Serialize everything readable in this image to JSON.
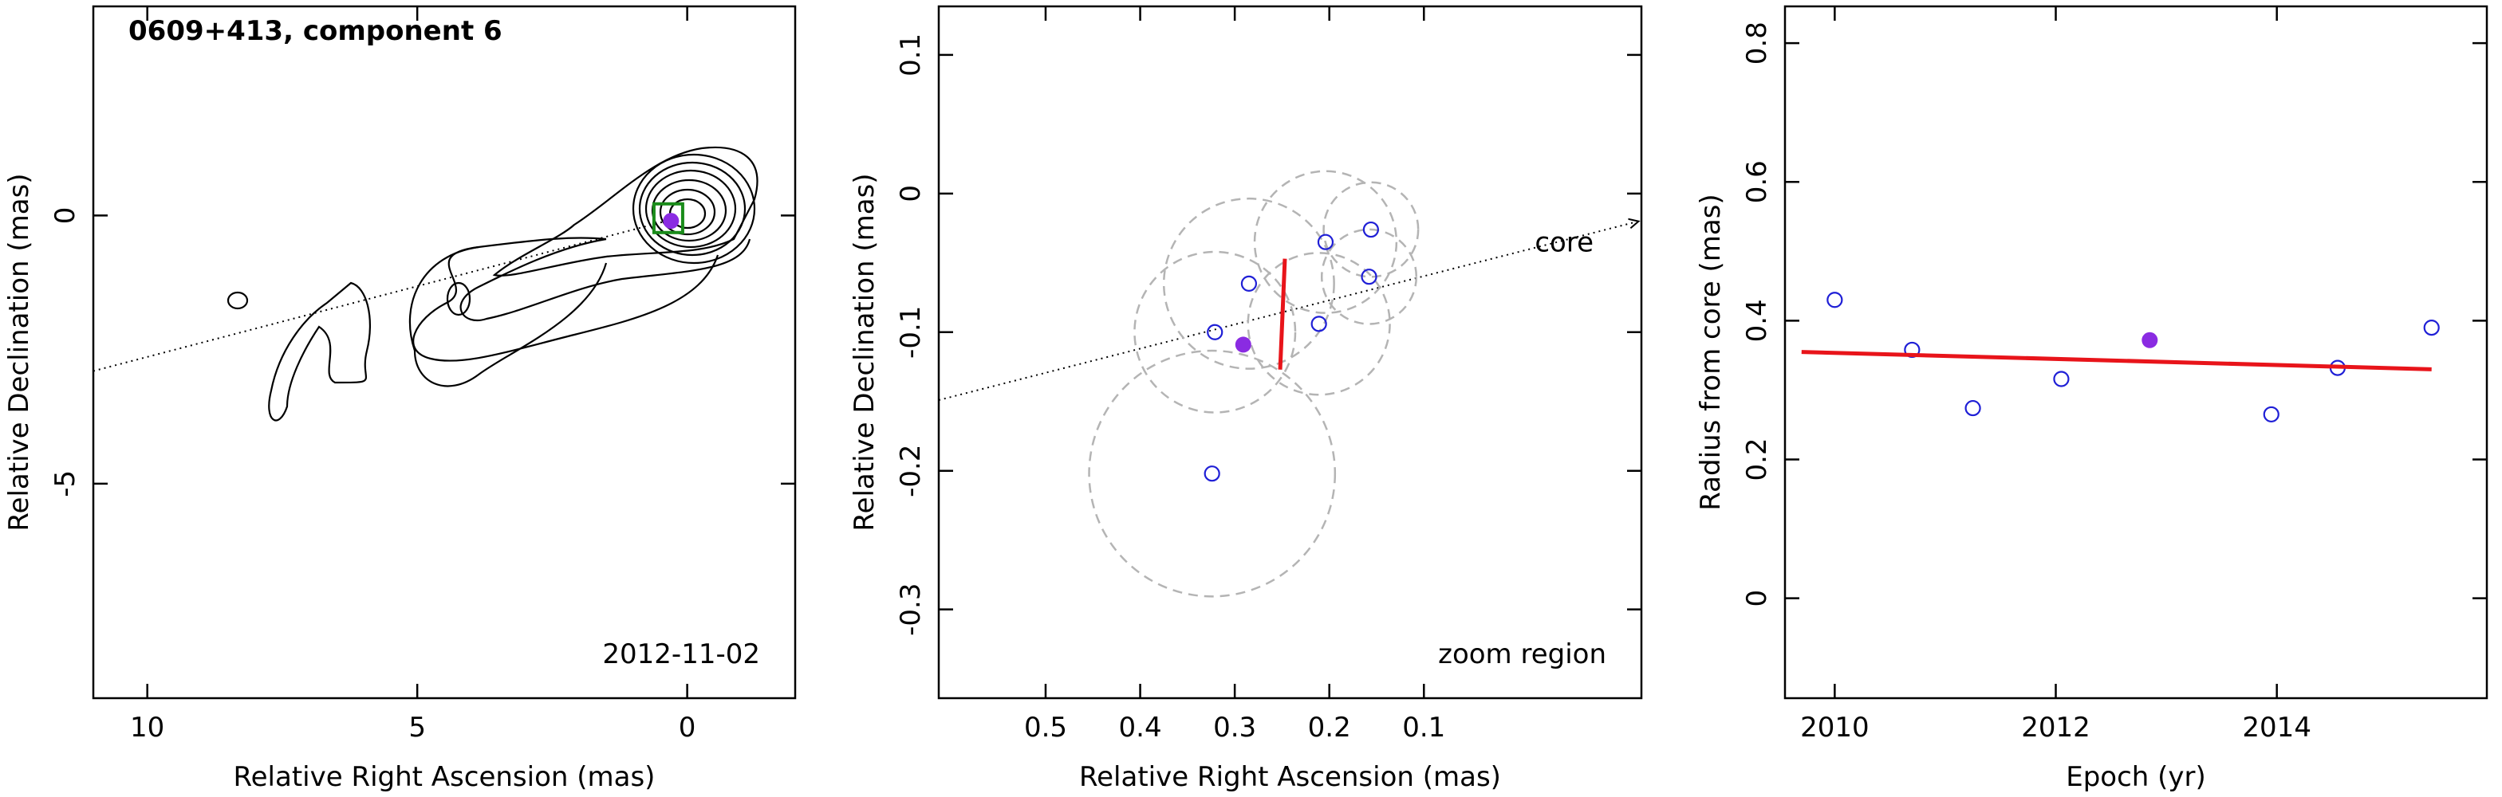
{
  "chart_data": [
    {
      "type": "map",
      "title": "0609+413, component 6",
      "annotation": "2012-11-02",
      "xlabel": "Relative Right Ascension (mas)",
      "ylabel": "Relative Declination (mas)",
      "xlim": [
        11,
        -2
      ],
      "ylim": [
        -9,
        3.9
      ],
      "xticks": [
        10,
        5,
        0
      ],
      "yticks": [
        0,
        -5
      ],
      "component": {
        "x": 0.3,
        "y": -0.1,
        "color": "#8a2be2"
      },
      "box": {
        "x": 0.35,
        "y": -0.05,
        "color": "#1a8c1a"
      },
      "direction_line": {
        "x": [
          11,
          0
        ],
        "y": [
          -2.9,
          0
        ]
      }
    },
    {
      "type": "scatter",
      "annotation": "zoom region",
      "line_label": "core",
      "xlabel": "Relative Right Ascension (mas)",
      "ylabel": "Relative Declination (mas)",
      "xlim": [
        0.613,
        -0.13
      ],
      "ylim": [
        -0.364,
        0.135
      ],
      "xticks": [
        0.5,
        0.4,
        0.3,
        0.2,
        0.1
      ],
      "yticks": [
        0.1,
        0,
        -0.1,
        -0.2,
        -0.3
      ],
      "points": {
        "color": "#1f1fd6",
        "x": [
          0.156,
          0.204,
          0.285,
          0.158,
          0.321,
          0.211,
          0.324
        ],
        "y": [
          -0.026,
          -0.035,
          -0.065,
          -0.06,
          -0.1,
          -0.094,
          -0.202
        ],
        "radii": [
          0.05,
          0.075,
          0.09,
          0.05,
          0.085,
          0.075,
          0.13
        ]
      },
      "highlight": {
        "x": 0.291,
        "y": -0.109,
        "color": "#8a2be2"
      },
      "fit_line": {
        "x": [
          0.247,
          0.252
        ],
        "y": [
          -0.047,
          -0.127
        ],
        "color": "#e8141a"
      },
      "direction_line": {
        "x": [
          0.613,
          -0.127
        ],
        "y": [
          -0.149,
          -0.02
        ]
      }
    },
    {
      "type": "scatter",
      "xlabel": "Epoch (yr)",
      "ylabel": "Radius from core (mas)",
      "xlim": [
        2009.55,
        2015.9
      ],
      "ylim": [
        -0.144,
        0.853
      ],
      "xticks": [
        2010,
        2012,
        2014
      ],
      "yticks": [
        0,
        0.2,
        0.4,
        0.6,
        0.8
      ],
      "points": {
        "color": "#1f1fd6",
        "x": [
          2010.0,
          2010.7,
          2011.25,
          2012.05,
          2013.95,
          2014.55,
          2015.4
        ],
        "y": [
          0.43,
          0.358,
          0.274,
          0.316,
          0.265,
          0.332,
          0.39
        ]
      },
      "highlight": {
        "x": 2012.85,
        "y": 0.372,
        "color": "#8a2be2"
      },
      "fit_line": {
        "x": [
          2009.7,
          2015.4
        ],
        "y": [
          0.355,
          0.33
        ],
        "color": "#e8141a"
      }
    }
  ]
}
